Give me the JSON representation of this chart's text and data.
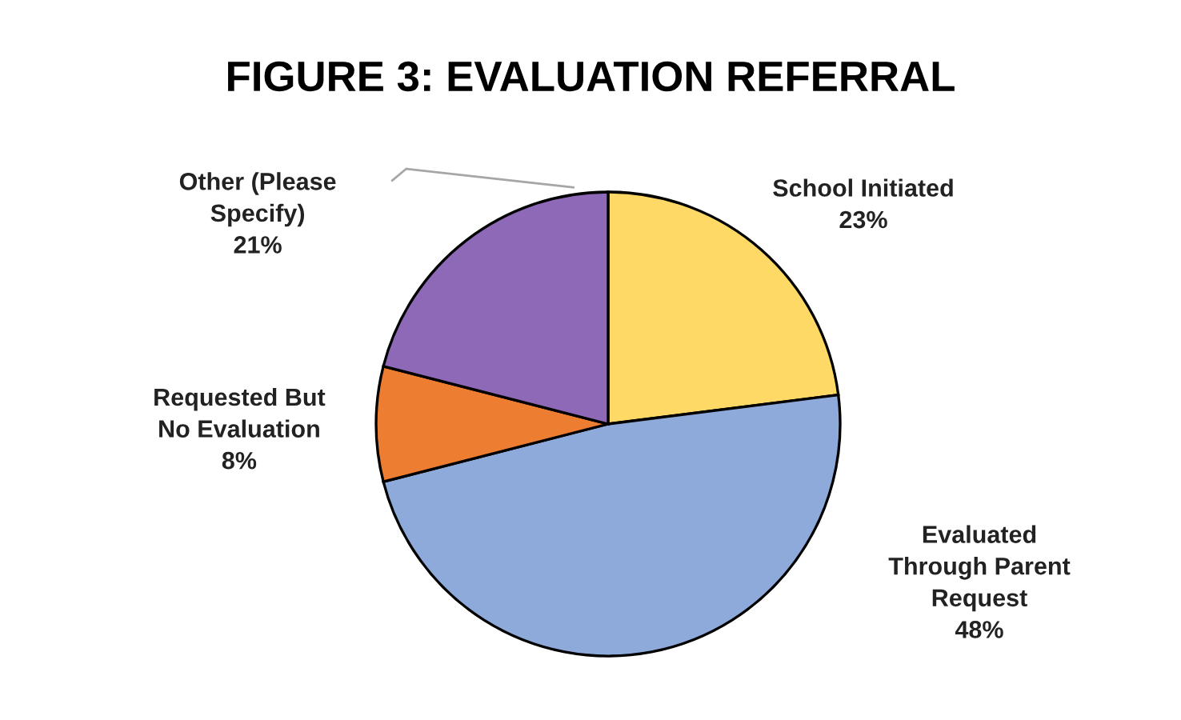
{
  "chart_data": {
    "type": "pie",
    "title": "FIGURE 3: EVALUATION REFERRAL",
    "categories": [
      "School Initiated",
      "Evaluated\nThrough Parent\nRequest",
      "Requested But\nNo Evaluation",
      "Other (Please\nSpecify)"
    ],
    "values": [
      23,
      48,
      8,
      21
    ],
    "colors": [
      "#ffd966",
      "#8eaadb",
      "#ed7d31",
      "#8e69b8"
    ],
    "value_labels": [
      "23%",
      "48%",
      "8%",
      "21%"
    ],
    "legend": false
  }
}
